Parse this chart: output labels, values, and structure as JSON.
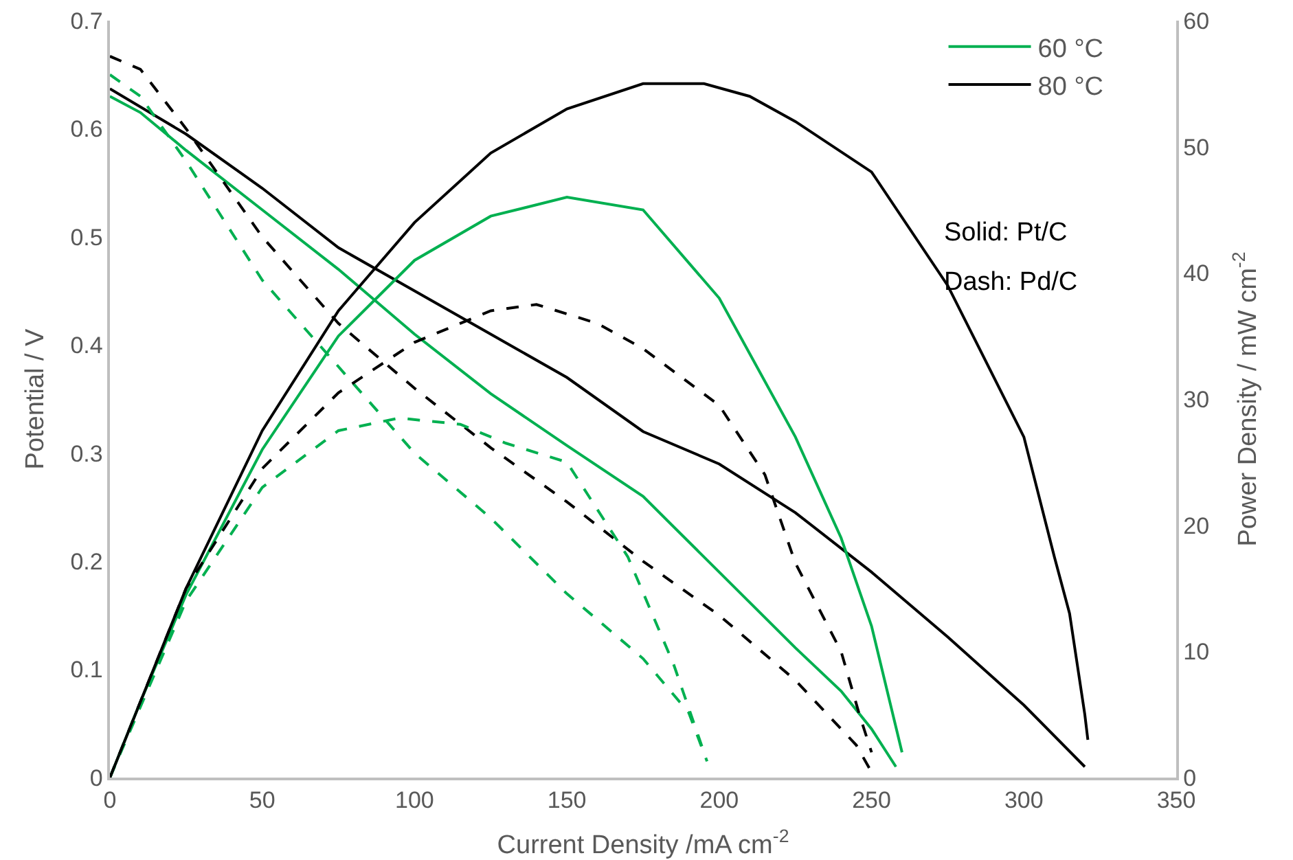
{
  "chart_data": {
    "type": "line",
    "xlabel": "Current Density /mA cm$^{-2}$",
    "ylabel": "Potential / V",
    "y2label": "Power Density / mW cm$^{-2}$",
    "xlim": [
      0,
      350
    ],
    "xticks": [
      0,
      50,
      100,
      150,
      200,
      250,
      300,
      350
    ],
    "ylim": [
      0,
      0.7
    ],
    "yticks": [
      0,
      0.1,
      0.2,
      0.3,
      0.4,
      0.5,
      0.6,
      0.7
    ],
    "y2lim": [
      0,
      60
    ],
    "y2ticks": [
      0,
      10,
      20,
      30,
      40,
      50,
      60
    ],
    "grid": false,
    "legend": "top right",
    "marker": "none",
    "annotations": [
      "Solid: Pt/C",
      "Dash: Pd/C"
    ],
    "series": [
      {
        "name": "60 °C",
        "color": "#00b050",
        "line_style": "solid",
        "x": [
          0,
          10,
          25,
          50,
          75,
          100,
          125,
          150,
          175,
          200,
          225,
          240,
          250,
          258
        ],
        "values": [
          0.63,
          0.615,
          0.58,
          0.525,
          0.47,
          0.41,
          0.355,
          0.307,
          0.26,
          0.19,
          0.12,
          0.08,
          0.045,
          0.01
        ]
      },
      {
        "name": "80 °C",
        "color": "#000000",
        "line_style": "solid",
        "x": [
          0,
          25,
          50,
          75,
          100,
          125,
          150,
          175,
          200,
          225,
          250,
          275,
          300,
          320
        ],
        "values": [
          0.637,
          0.595,
          0.545,
          0.49,
          0.45,
          0.41,
          0.37,
          0.32,
          0.29,
          0.245,
          0.19,
          0.13,
          0.067,
          0.01
        ]
      },
      {
        "color": "#00b050",
        "line_style": "dashed",
        "x": [
          0,
          10,
          25,
          50,
          75,
          100,
          125,
          150,
          175,
          190,
          196
        ],
        "values": [
          0.65,
          0.63,
          0.57,
          0.46,
          0.38,
          0.3,
          0.24,
          0.17,
          0.11,
          0.06,
          0.015
        ]
      },
      {
        "color": "#000000",
        "line_style": "dashed",
        "x": [
          0,
          10,
          25,
          50,
          75,
          100,
          125,
          150,
          175,
          200,
          225,
          245,
          250
        ],
        "values": [
          0.667,
          0.655,
          0.6,
          0.5,
          0.42,
          0.36,
          0.305,
          0.255,
          0.2,
          0.15,
          0.09,
          0.03,
          0.005
        ]
      },
      {
        "color": "#00b050",
        "line_style": "solid",
        "axis": "y2",
        "x": [
          0,
          10,
          25,
          50,
          75,
          100,
          125,
          150,
          175,
          200,
          225,
          240,
          250,
          258,
          260
        ],
        "values": [
          0,
          6,
          14.5,
          26,
          35,
          41,
          44.5,
          46,
          45,
          38,
          27,
          19,
          12,
          4,
          2
        ]
      },
      {
        "color": "#000000",
        "line_style": "solid",
        "axis": "y2",
        "x": [
          0,
          25,
          50,
          75,
          100,
          125,
          150,
          175,
          195,
          210,
          225,
          250,
          275,
          300,
          310,
          315,
          320,
          321
        ],
        "values": [
          0,
          15,
          27.5,
          37,
          44,
          49.5,
          53,
          55,
          55,
          54,
          52,
          48,
          39,
          27,
          17.5,
          13,
          5,
          3
        ]
      },
      {
        "color": "#00b050",
        "line_style": "dashed",
        "axis": "y2",
        "x": [
          0,
          25,
          50,
          75,
          95,
          115,
          130,
          150,
          170,
          185,
          195
        ],
        "values": [
          0,
          14,
          23,
          27.5,
          28.5,
          28,
          26.5,
          25,
          17.5,
          9,
          2
        ]
      },
      {
        "color": "#000000",
        "line_style": "dashed",
        "axis": "y2",
        "x": [
          0,
          25,
          50,
          75,
          100,
          125,
          140,
          160,
          175,
          200,
          215,
          225,
          240,
          246,
          250
        ],
        "values": [
          0,
          15,
          24.5,
          30.5,
          34.5,
          37,
          37.5,
          36,
          34,
          29.5,
          24,
          17,
          10,
          5,
          2
        ]
      }
    ]
  }
}
